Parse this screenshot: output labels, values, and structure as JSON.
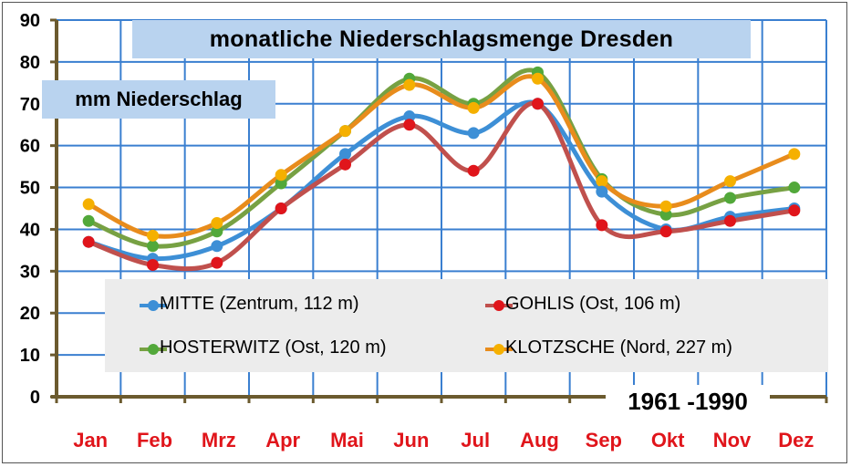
{
  "chart_data": {
    "type": "line",
    "title": "monatliche Niederschlagsmenge Dresden",
    "ylabel": "mm Niederschlag",
    "categories": [
      "Jan",
      "Feb",
      "Mrz",
      "Apr",
      "Mai",
      "Jun",
      "Jul",
      "Aug",
      "Sep",
      "Okt",
      "Nov",
      "Dez"
    ],
    "ylim": [
      0,
      90
    ],
    "yticks": [
      "0",
      "10",
      "20",
      "30",
      "40",
      "50",
      "60",
      "70",
      "80",
      "90"
    ],
    "grid": true,
    "legend_position": "bottom",
    "annotation": "1961 -1990",
    "series": [
      {
        "name": "MITTE (Zentrum, 112 m)",
        "color": "#3d8fd6",
        "values": [
          37,
          33,
          36,
          45,
          58,
          67,
          63,
          70,
          49,
          40,
          43,
          45
        ]
      },
      {
        "name": "GOHLIS (Ost, 106 m)",
        "color": "#c0504d",
        "marker_color": "#e0151b",
        "values": [
          37,
          31.5,
          32,
          45,
          55.5,
          65,
          54,
          70,
          41,
          39.5,
          42,
          44.5
        ]
      },
      {
        "name": "HOSTERWITZ (Ost, 120 m)",
        "color": "#77a143",
        "marker_color": "#52a83a",
        "values": [
          42,
          36,
          39.5,
          51,
          63.5,
          76,
          70,
          77.5,
          52,
          43.5,
          47.5,
          50
        ]
      },
      {
        "name": "KLOTZSCHE (Nord, 227 m)",
        "color": "#e88c1c",
        "marker_color": "#f5b000",
        "values": [
          46,
          38.5,
          41.5,
          53,
          63.5,
          74.5,
          69,
          76,
          51.5,
          45.5,
          51.5,
          58
        ]
      }
    ]
  },
  "colors": {
    "grid": "#3a7fd0",
    "axis": "#6b5a2e",
    "category_label": "#e0151b",
    "title_background": "#b9d3ef",
    "legend_background": "#ececec"
  }
}
